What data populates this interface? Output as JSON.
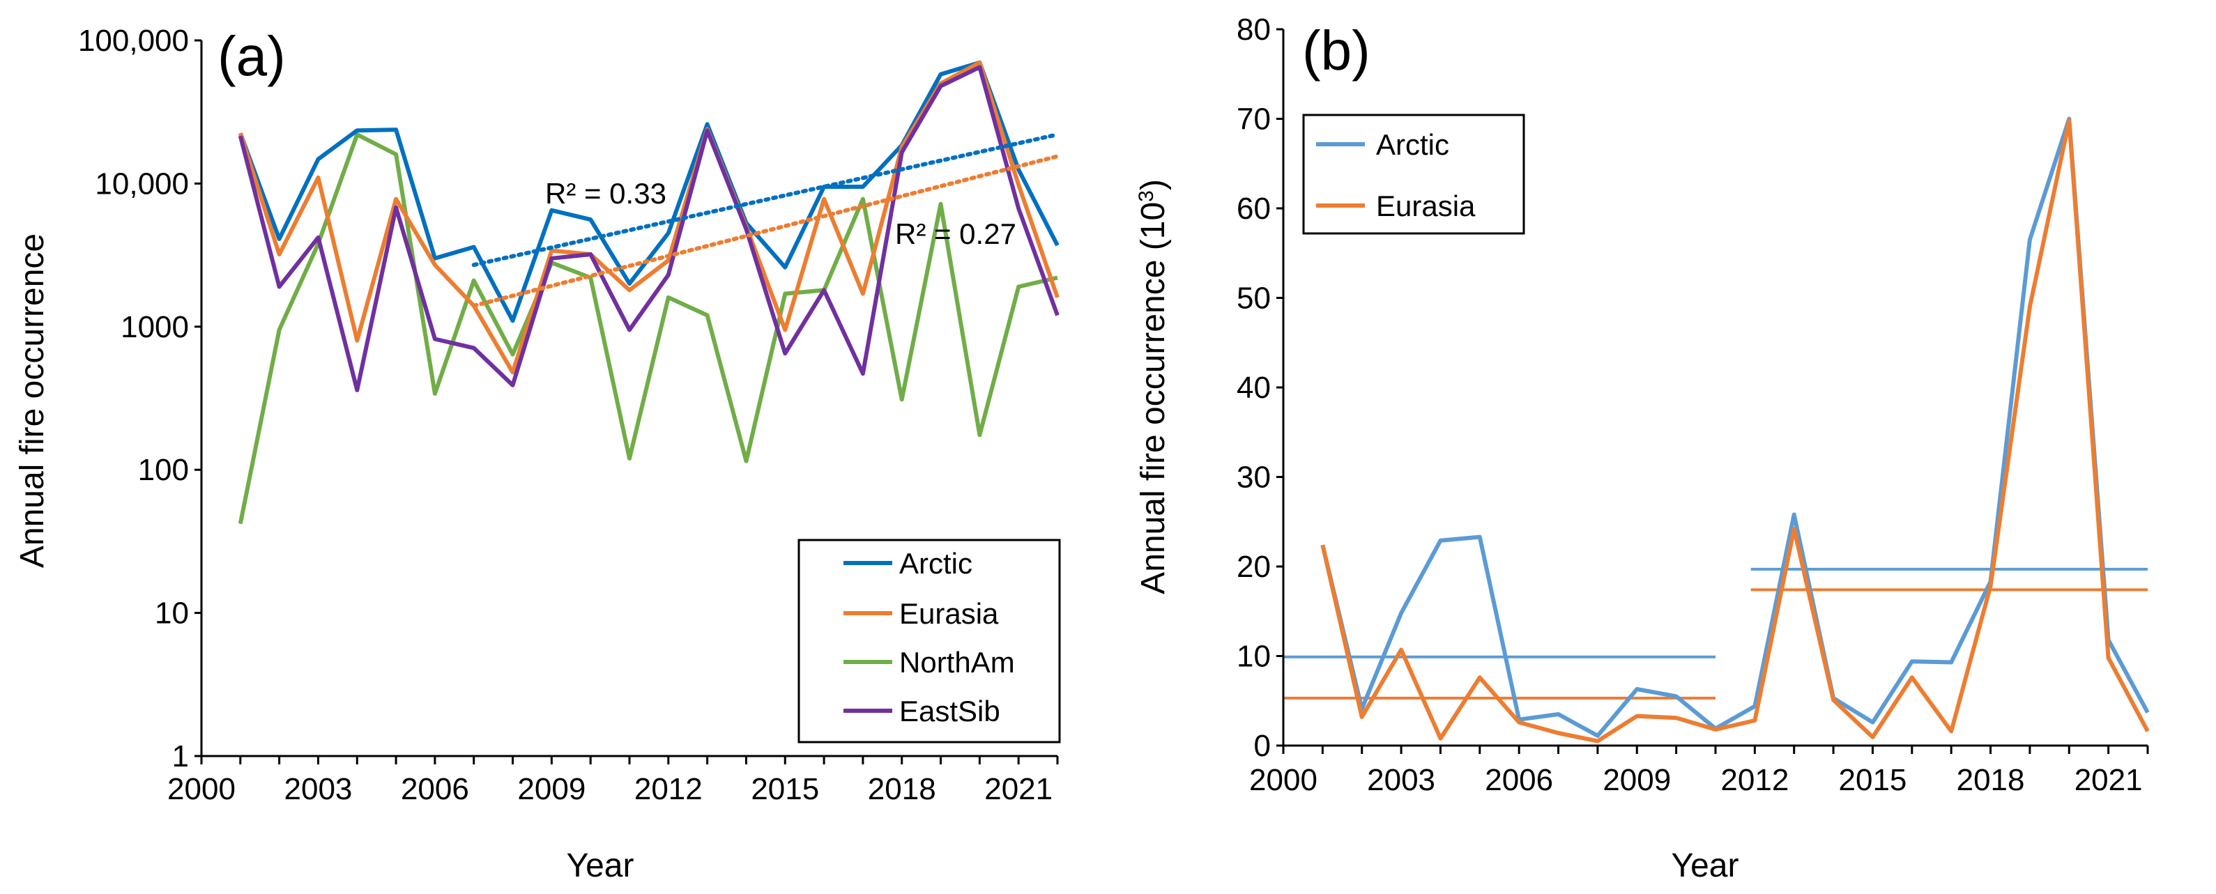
{
  "colors": {
    "Arctic": "#0070C0",
    "Eurasia": "#ED7D31",
    "NorthAm": "#70AD47",
    "EastSib": "#7030A0",
    "Arctic_b": "#5B9BD5"
  },
  "chart_data": [
    {
      "panel": "(a)",
      "type": "line",
      "yscale": "log",
      "xlabel": "Year",
      "ylabel": "Annual fire occurrence",
      "xlim": [
        2000,
        2022
      ],
      "ylim": [
        1,
        100000
      ],
      "xticks": [
        2000,
        2003,
        2006,
        2009,
        2012,
        2015,
        2018,
        2021
      ],
      "yticks": [
        1,
        10,
        100,
        1000,
        10000,
        100000
      ],
      "ytick_labels": [
        "1",
        "10",
        "100",
        "1000",
        "10,000",
        "100,000"
      ],
      "x": [
        2001,
        2002,
        2003,
        2004,
        2005,
        2006,
        2007,
        2008,
        2009,
        2010,
        2011,
        2012,
        2013,
        2014,
        2015,
        2016,
        2017,
        2018,
        2019,
        2020,
        2021,
        2022
      ],
      "series": [
        {
          "name": "Arctic",
          "values": [
            22500,
            4100,
            14800,
            23500,
            23800,
            3000,
            3600,
            1100,
            6500,
            5600,
            2000,
            4500,
            26000,
            5300,
            2600,
            9500,
            9500,
            18500,
            58000,
            70000,
            12500,
            3700
          ]
        },
        {
          "name": "Eurasia",
          "values": [
            22500,
            3200,
            11000,
            800,
            7800,
            2700,
            1400,
            480,
            3400,
            3200,
            1800,
            2900,
            24000,
            5000,
            950,
            7800,
            1700,
            18000,
            50000,
            70000,
            9800,
            1600
          ]
        },
        {
          "name": "NorthAm",
          "values": [
            42,
            950,
            3800,
            22000,
            16000,
            340,
            2100,
            640,
            2800,
            2200,
            120,
            1600,
            1200,
            115,
            1700,
            1800,
            7800,
            310,
            7200,
            175,
            1900,
            2200
          ]
        },
        {
          "name": "EastSib",
          "values": [
            21500,
            1900,
            4200,
            360,
            6800,
            820,
            710,
            390,
            3000,
            3200,
            950,
            2300,
            23500,
            4800,
            650,
            1800,
            470,
            16500,
            48000,
            65000,
            6700,
            1200
          ]
        }
      ],
      "trendlines": [
        {
          "series": "Arctic",
          "from": [
            2007,
            2700
          ],
          "to": [
            2022,
            22000
          ],
          "label": "R² = 0.33"
        },
        {
          "series": "Eurasia",
          "from": [
            2007,
            1400
          ],
          "to": [
            2022,
            15500
          ],
          "label": "R² = 0.27"
        }
      ],
      "legend": [
        "Arctic",
        "Eurasia",
        "NorthAm",
        "EastSib"
      ],
      "legend_position": "bottom-right"
    },
    {
      "panel": "(b)",
      "type": "line",
      "xlabel": "Year",
      "ylabel": "Annual fire occurrence (10",
      "ylabel_sup": "3",
      "ylabel_end": ")",
      "xlim": [
        2000,
        2022
      ],
      "ylim": [
        0,
        80
      ],
      "xticks": [
        2000,
        2003,
        2006,
        2009,
        2012,
        2015,
        2018,
        2021
      ],
      "yticks": [
        0,
        10,
        20,
        30,
        40,
        50,
        60,
        70,
        80
      ],
      "x": [
        2001,
        2002,
        2003,
        2004,
        2005,
        2006,
        2007,
        2008,
        2009,
        2010,
        2011,
        2012,
        2013,
        2014,
        2015,
        2016,
        2017,
        2018,
        2019,
        2020,
        2021,
        2022
      ],
      "series": [
        {
          "name": "Arctic",
          "values": [
            22.4,
            4.1,
            14.8,
            22.9,
            23.3,
            2.9,
            3.5,
            1.1,
            6.3,
            5.5,
            1.9,
            4.4,
            25.8,
            5.3,
            2.6,
            9.4,
            9.3,
            18.3,
            56.5,
            70.0,
            11.8,
            3.7
          ]
        },
        {
          "name": "Eurasia",
          "values": [
            22.4,
            3.2,
            10.7,
            0.8,
            7.6,
            2.6,
            1.4,
            0.5,
            3.3,
            3.1,
            1.8,
            2.8,
            24.2,
            5.1,
            0.95,
            7.6,
            1.6,
            17.8,
            49.0,
            69.8,
            9.8,
            1.6
          ]
        }
      ],
      "mean_lines": [
        {
          "series": "Arctic",
          "from": 2000,
          "to": 2011,
          "value": 9.9
        },
        {
          "series": "Eurasia",
          "from": 2000,
          "to": 2011,
          "value": 5.3
        },
        {
          "series": "Arctic",
          "from": 2011.9,
          "to": 2022,
          "value": 19.7
        },
        {
          "series": "Eurasia",
          "from": 2011.9,
          "to": 2022,
          "value": 17.4
        }
      ],
      "legend": [
        "Arctic",
        "Eurasia"
      ],
      "legend_position": "top-left"
    }
  ]
}
